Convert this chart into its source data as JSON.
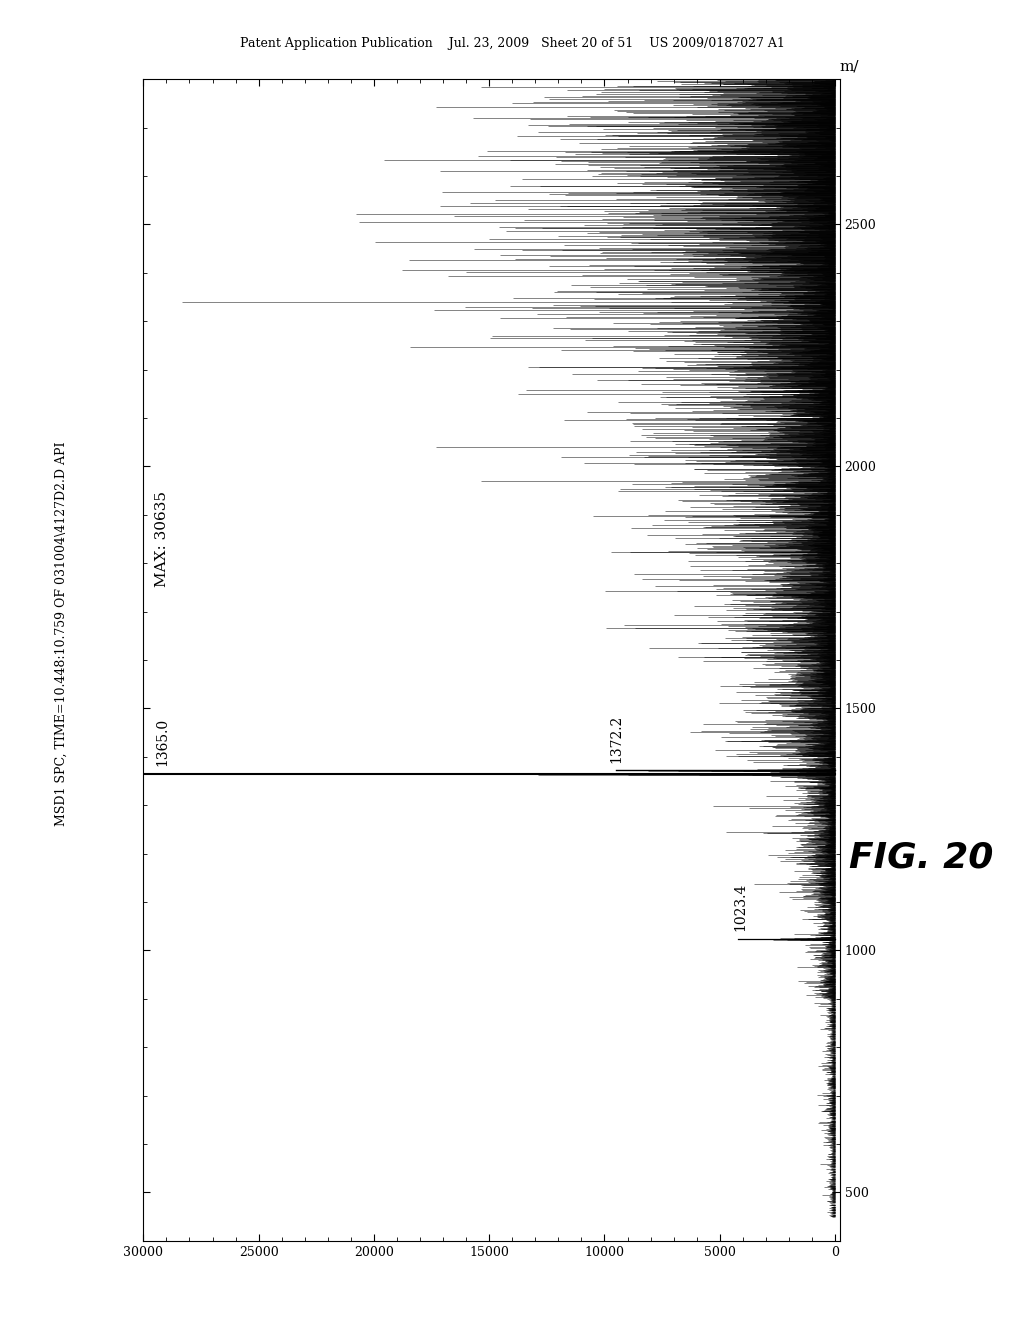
{
  "title_header": "Patent Application Publication    Jul. 23, 2009   Sheet 20 of 51    US 2009/0187027 A1",
  "ylabel_rotated": "MSD1 SPC, TIME=10.448:10.759 OF 031004\\4127D2.D API",
  "xlabel_right": "m/",
  "fig_label": "FIG. 20",
  "max_label": "MAX: 30635",
  "peak_1365_label": "1365.0",
  "peak_1365_mz": 1365.0,
  "peak_1365_int": 30635,
  "peak_1372_label": "1372.2",
  "peak_1372_mz": 1372.2,
  "peak_1372_int": 9500,
  "peak_1023_label": "1023.4",
  "peak_1023_mz": 1023.4,
  "peak_1023_int": 4200,
  "mz_min": 400,
  "mz_max": 2800,
  "int_min": 0,
  "int_max": 30000,
  "int_ticks": [
    0,
    5000,
    10000,
    15000,
    20000,
    25000,
    30000
  ],
  "mz_ticks": [
    500,
    1000,
    1500,
    2000,
    2500
  ],
  "noise_seed": 7,
  "background_color": "#ffffff"
}
